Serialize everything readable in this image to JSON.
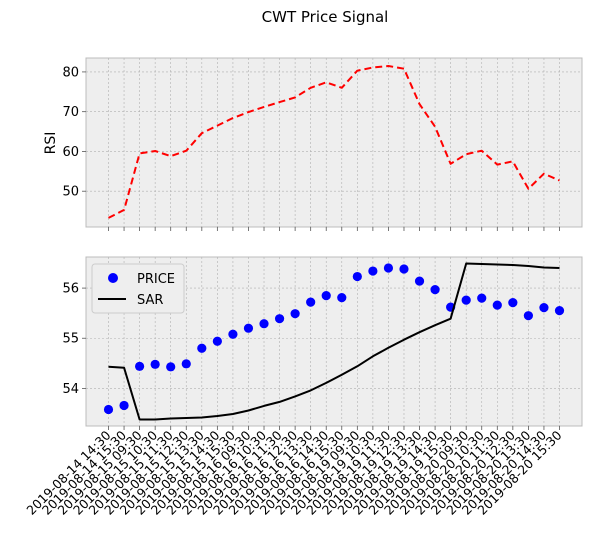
{
  "chart_data": {
    "title": "CWT Price Signal",
    "x": [
      "2019-08-14 14:30",
      "2019-08-14 15:30",
      "2019-08-15 09:30",
      "2019-08-15 10:30",
      "2019-08-15 11:30",
      "2019-08-15 12:30",
      "2019-08-15 13:30",
      "2019-08-15 14:30",
      "2019-08-15 15:30",
      "2019-08-16 09:30",
      "2019-08-16 10:30",
      "2019-08-16 11:30",
      "2019-08-16 12:30",
      "2019-08-16 13:30",
      "2019-08-16 14:30",
      "2019-08-16 15:30",
      "2019-08-19 09:30",
      "2019-08-19 10:30",
      "2019-08-19 11:30",
      "2019-08-19 12:30",
      "2019-08-19 13:30",
      "2019-08-19 14:30",
      "2019-08-19 15:30",
      "2019-08-20 09:30",
      "2019-08-20 10:30",
      "2019-08-20 11:30",
      "2019-08-20 12:30",
      "2019-08-20 13:30",
      "2019-08-20 14:30",
      "2019-08-20 15:30"
    ],
    "panels": [
      {
        "type": "line",
        "ylabel": "RSI",
        "ylim": [
          41,
          83.5
        ],
        "yticks": [
          50,
          60,
          70,
          80
        ],
        "grid": true,
        "series": [
          {
            "color": "#ff0000",
            "style": "dashed",
            "values": [
              43.3,
              45.3,
              59.5,
              60.1,
              58.8,
              60.2,
              64.6,
              66.5,
              68.4,
              69.9,
              71.2,
              72.4,
              73.6,
              76.0,
              77.4,
              76.0,
              80.3,
              81.1,
              81.5,
              80.8,
              71.9,
              66.2,
              56.9,
              59.3,
              60.2,
              56.7,
              57.5,
              50.6,
              54.4,
              52.7
            ]
          }
        ]
      },
      {
        "type": "line",
        "ylim": [
          53.25,
          56.62
        ],
        "yticks": [
          54,
          55,
          56
        ],
        "grid": true,
        "legend_position": "top-left",
        "series": [
          {
            "name": "PRICE",
            "kind": "scatter",
            "color": "#0000ff",
            "values": [
              53.58,
              53.66,
              54.44,
              54.48,
              54.43,
              54.49,
              54.8,
              54.94,
              55.08,
              55.2,
              55.29,
              55.39,
              55.49,
              55.72,
              55.85,
              55.81,
              56.23,
              56.34,
              56.4,
              56.38,
              56.14,
              55.97,
              55.62,
              55.76,
              55.8,
              55.66,
              55.71,
              55.45,
              55.61,
              55.55
            ]
          },
          {
            "name": "SAR",
            "kind": "line",
            "color": "#000000",
            "values": [
              54.43,
              54.41,
              53.38,
              53.38,
              53.4,
              53.41,
              53.42,
              53.45,
              53.49,
              53.56,
              53.65,
              53.73,
              53.84,
              53.96,
              54.11,
              54.27,
              54.44,
              54.64,
              54.81,
              54.97,
              55.12,
              55.26,
              55.39,
              56.49,
              56.48,
              56.47,
              56.46,
              56.44,
              56.41,
              56.4
            ]
          }
        ]
      }
    ]
  }
}
